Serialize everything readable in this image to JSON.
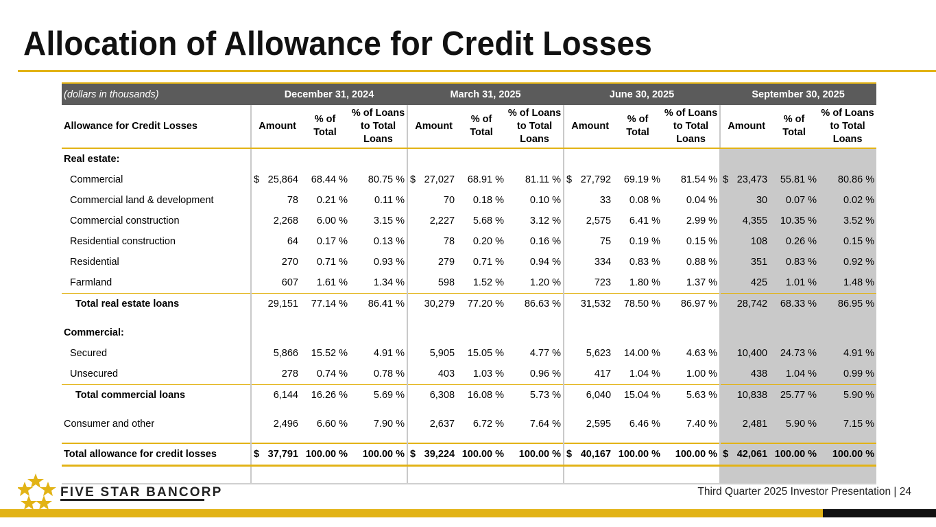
{
  "title": "Allocation of Allowance for Credit Losses",
  "table": {
    "units": "(dollars in thousands)",
    "periods": [
      "December 31, 2024",
      "March 31, 2025",
      "June 30, 2025",
      "September 30, 2025"
    ],
    "row_header": "Allowance for Credit Losses",
    "col_amount": "Amount",
    "col_pct_total": [
      "% of",
      "Total"
    ],
    "col_pct_loans": [
      "% of Loans",
      "to Total",
      "Loans"
    ],
    "sections": {
      "real_estate": "Real estate:",
      "commercial": "Commercial:"
    },
    "rows": [
      {
        "label": "Commercial",
        "dollar": true,
        "vals": [
          "25,864",
          "68.44 %",
          "80.75 %",
          "27,027",
          "68.91 %",
          "81.11 %",
          "27,792",
          "69.19 %",
          "81.54 %",
          "23,473",
          "55.81 %",
          "80.86 %"
        ]
      },
      {
        "label": "Commercial land & development",
        "vals": [
          "78",
          "0.21 %",
          "0.11 %",
          "70",
          "0.18 %",
          "0.10 %",
          "33",
          "0.08 %",
          "0.04 %",
          "30",
          "0.07 %",
          "0.02 %"
        ]
      },
      {
        "label": "Commercial construction",
        "vals": [
          "2,268",
          "6.00 %",
          "3.15 %",
          "2,227",
          "5.68 %",
          "3.12 %",
          "2,575",
          "6.41 %",
          "2.99 %",
          "4,355",
          "10.35 %",
          "3.52 %"
        ]
      },
      {
        "label": "Residential construction",
        "vals": [
          "64",
          "0.17 %",
          "0.13 %",
          "78",
          "0.20 %",
          "0.16 %",
          "75",
          "0.19 %",
          "0.15 %",
          "108",
          "0.26 %",
          "0.15 %"
        ]
      },
      {
        "label": "Residential",
        "vals": [
          "270",
          "0.71 %",
          "0.93 %",
          "279",
          "0.71 %",
          "0.94 %",
          "334",
          "0.83 %",
          "0.88 %",
          "351",
          "0.83 %",
          "0.92 %"
        ]
      },
      {
        "label": "Farmland",
        "vals": [
          "607",
          "1.61 %",
          "1.34 %",
          "598",
          "1.52 %",
          "1.20 %",
          "723",
          "1.80 %",
          "1.37 %",
          "425",
          "1.01 %",
          "1.48 %"
        ]
      },
      {
        "label": "Total real estate loans",
        "vals": [
          "29,151",
          "77.14 %",
          "86.41 %",
          "30,279",
          "77.20 %",
          "86.63 %",
          "31,532",
          "78.50 %",
          "86.97 %",
          "28,742",
          "68.33 %",
          "86.95 %"
        ]
      },
      {
        "label": "Secured",
        "vals": [
          "5,866",
          "15.52 %",
          "4.91 %",
          "5,905",
          "15.05 %",
          "4.77 %",
          "5,623",
          "14.00 %",
          "4.63 %",
          "10,400",
          "24.73 %",
          "4.91 %"
        ]
      },
      {
        "label": "Unsecured",
        "vals": [
          "278",
          "0.74 %",
          "0.78 %",
          "403",
          "1.03 %",
          "0.96 %",
          "417",
          "1.04 %",
          "1.00 %",
          "438",
          "1.04 %",
          "0.99 %"
        ]
      },
      {
        "label": "Total commercial loans",
        "vals": [
          "6,144",
          "16.26 %",
          "5.69 %",
          "6,308",
          "16.08 %",
          "5.73 %",
          "6,040",
          "15.04 %",
          "5.63 %",
          "10,838",
          "25.77 %",
          "5.90 %"
        ]
      },
      {
        "label": "Consumer and other",
        "vals": [
          "2,496",
          "6.60 %",
          "7.90 %",
          "2,637",
          "6.72 %",
          "7.64 %",
          "2,595",
          "6.46 %",
          "7.40 %",
          "2,481",
          "5.90 %",
          "7.15 %"
        ]
      },
      {
        "label": "Total allowance for credit losses",
        "dollar": true,
        "vals": [
          "37,791",
          "100.00 %",
          "100.00 %",
          "39,224",
          "100.00 %",
          "100.00 %",
          "40,167",
          "100.00 %",
          "100.00 %",
          "42,061",
          "100.00 %",
          "100.00 %"
        ]
      }
    ],
    "currency_symbol": "$"
  },
  "footer": {
    "logo_text": "FIVE STAR BANCORP",
    "presentation": "Third Quarter 2025 Investor Presentation |  24"
  },
  "colors": {
    "gold": "#e2b316",
    "header_gray": "#5b5b5b",
    "shade": "#c9c9c9"
  }
}
